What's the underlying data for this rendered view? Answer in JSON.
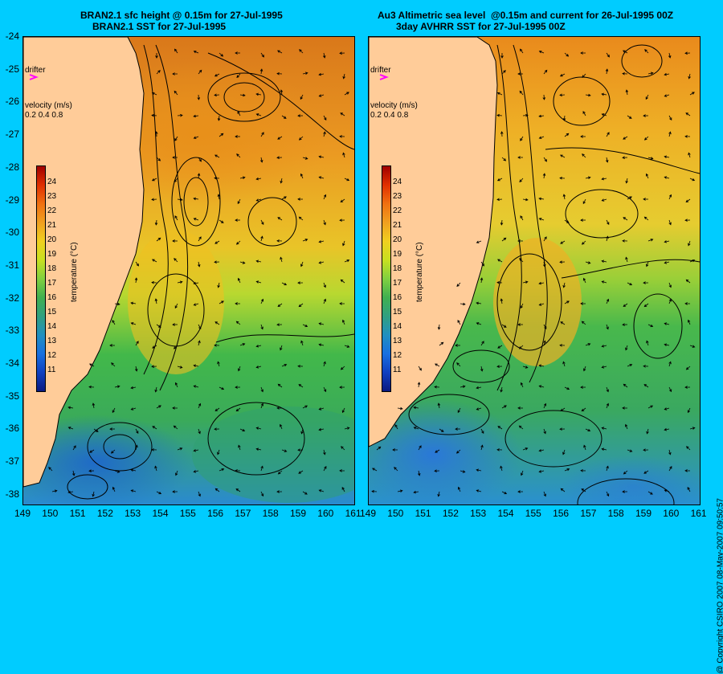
{
  "left": {
    "title1": "BRAN2.1 sfc height @ 0.15m for 27-Jul-1995",
    "title2": "BRAN2.1 SST for 27-Jul-1995"
  },
  "right": {
    "title1": "Au3 Altimetric sea level  @0.15m and current for 26-Jul-1995 00Z",
    "title2": "3day AVHRR SST for 27-Jul-1995 00Z"
  },
  "drifter_label": "drifter",
  "velocity_label": "velocity (m/s)",
  "velocity_scale": [
    "0.2",
    "0.4",
    "0.8"
  ],
  "colorbar_title": "temperature (°C)",
  "colorbar_ticks": [
    "24",
    "23",
    "22",
    "21",
    "20",
    "19",
    "18",
    "17",
    "16",
    "15",
    "14",
    "13",
    "12",
    "11"
  ],
  "yticks": [
    "-24",
    "-25",
    "-26",
    "-27",
    "-28",
    "-29",
    "-30",
    "-31",
    "-32",
    "-33",
    "-34",
    "-35",
    "-36",
    "-37",
    "-38"
  ],
  "xticks_left": [
    "149",
    "150",
    "151",
    "152",
    "153",
    "154",
    "155",
    "156",
    "157",
    "158",
    "159",
    "160",
    "161"
  ],
  "xticks_right": [
    "149",
    "150",
    "151",
    "152",
    "153",
    "154",
    "155",
    "156",
    "157",
    "158",
    "159",
    "160",
    "161"
  ],
  "copyright": "@ Copyright CSIRO 2007  08-May-2007 09:50:57",
  "colors": {
    "background": "#00ccff",
    "land": "#ffcc99",
    "drifter": "#ff00ff",
    "warm": "#e8901a",
    "mid": "#f0c020",
    "green": "#40b848",
    "cool": "#2a90d8"
  }
}
